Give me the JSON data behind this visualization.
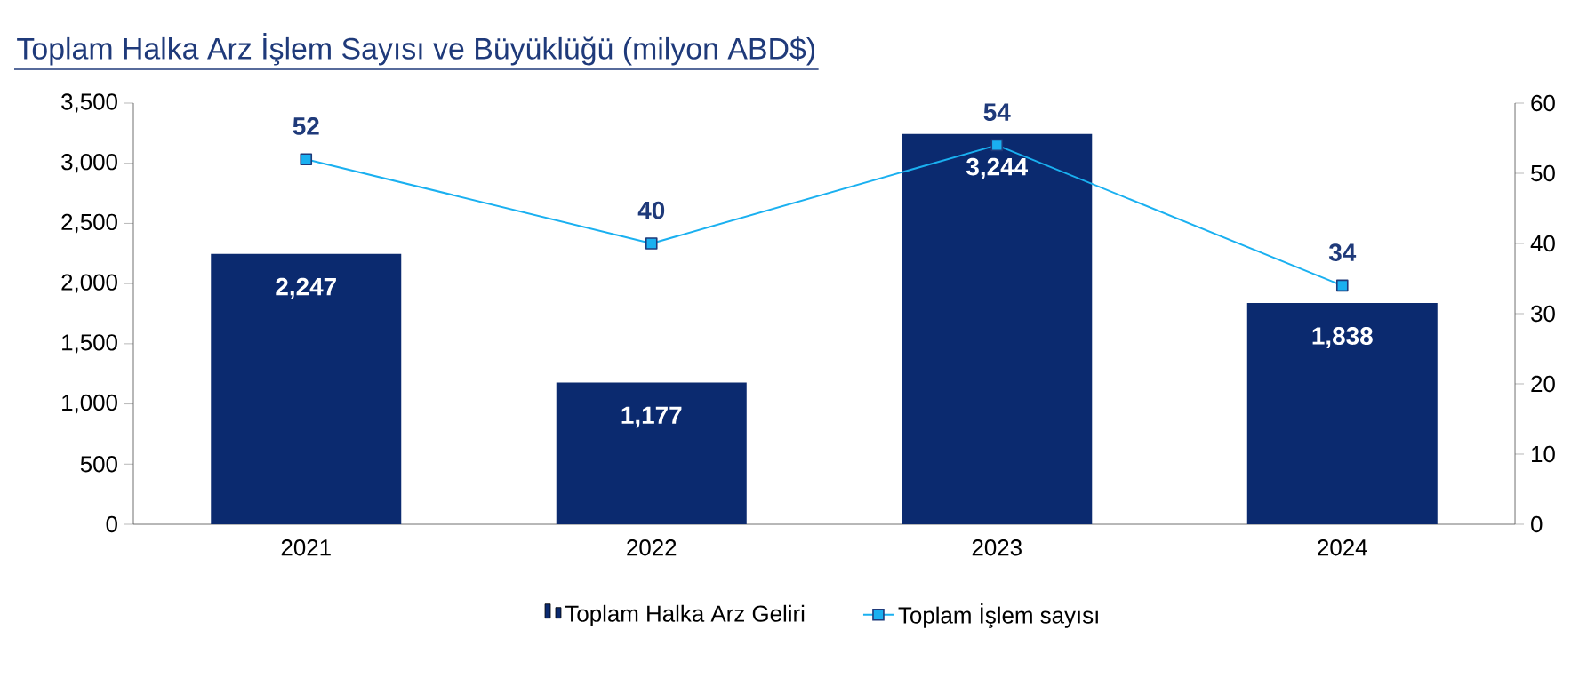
{
  "chart_data": {
    "type": "bar",
    "title": "Toplam Halka Arz İşlem Sayısı ve Büyüklüğü (milyon ABD$)",
    "categories": [
      "2021",
      "2022",
      "2023",
      "2024"
    ],
    "series": [
      {
        "name": "Toplam Halka Arz Geliri",
        "color": "#0b2a6f",
        "values": [
          2247,
          1177,
          3244,
          1838
        ],
        "value_labels": [
          "2,247",
          "1,177",
          "3,244",
          "1,838"
        ]
      },
      {
        "name": "Toplam İşlem sayısı",
        "type": "line",
        "axis": "y2",
        "color": "#1ab0f0",
        "marker": "square",
        "values": [
          52,
          40,
          54,
          34
        ],
        "value_labels": [
          "52",
          "40",
          "54",
          "34"
        ]
      }
    ],
    "ylim": [
      0,
      3500
    ],
    "yticks": [
      0,
      {
        "value": 500,
        "label": "500"
      },
      {
        "value": 1000,
        "label": "1,000"
      },
      {
        "value": 1500,
        "label": "1,500"
      },
      {
        "value": 2000,
        "label": "2,000"
      },
      {
        "value": 2500,
        "label": "2,500"
      },
      {
        "value": 3000,
        "label": "3,000"
      },
      {
        "value": 3500,
        "label": "3,500"
      }
    ],
    "y2lim": [
      0,
      60
    ],
    "y2ticks": [
      0,
      10,
      20,
      30,
      40,
      50,
      60
    ],
    "legend": "bottom"
  }
}
